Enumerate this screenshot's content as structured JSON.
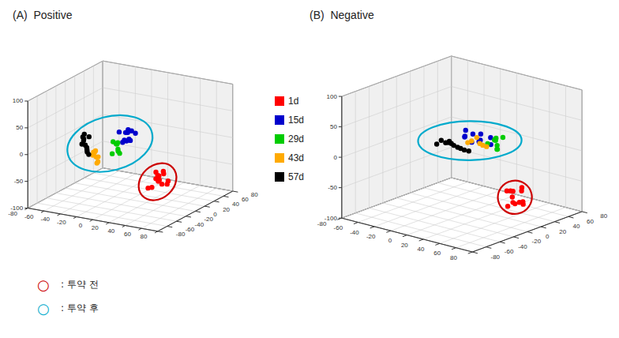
{
  "chart_data": [
    {
      "type": "scatter3d",
      "title": "(A)  Positive",
      "series": [
        {
          "name": "1d",
          "color": "#ff0000",
          "x": [
            25,
            20,
            30,
            35,
            22,
            28,
            32,
            25,
            38,
            20,
            15,
            27,
            18
          ],
          "y": [
            15,
            20,
            10,
            18,
            8,
            22,
            12,
            28,
            15,
            25,
            12,
            8,
            30
          ],
          "z": [
            -55,
            -65,
            -60,
            -70,
            -75,
            -50,
            -68,
            -58,
            -62,
            -72,
            -80,
            -45,
            -65
          ]
        },
        {
          "name": "15d",
          "color": "#0000cc",
          "x": [
            10,
            15,
            5,
            0,
            12,
            8,
            2,
            10,
            -5,
            13,
            7
          ],
          "y": [
            -20,
            -15,
            -25,
            -10,
            -18,
            -22,
            -8,
            -30,
            -15,
            -28,
            -12
          ],
          "z": [
            25,
            35,
            20,
            30,
            40,
            22,
            35,
            28,
            32,
            42,
            18
          ]
        },
        {
          "name": "29d",
          "color": "#00cc00",
          "x": [
            5,
            0,
            10,
            3,
            -2,
            7,
            2,
            -5
          ],
          "y": [
            -35,
            -30,
            -40,
            -32,
            -25,
            -38,
            -42,
            -28
          ],
          "z": [
            12,
            18,
            8,
            22,
            15,
            10,
            6,
            20
          ]
        },
        {
          "name": "43d",
          "color": "#ffaa00",
          "x": [
            -20,
            -25,
            -15,
            -22,
            -18,
            -28,
            -13,
            -30
          ],
          "y": [
            -38,
            -33,
            -43,
            -36,
            -40,
            -30,
            -46,
            -28
          ],
          "z": [
            -8,
            -3,
            -13,
            2,
            -18,
            -5,
            -2,
            -12
          ]
        },
        {
          "name": "57d",
          "color": "#000000",
          "x": [
            -45,
            -50,
            -40,
            -48,
            -35,
            -52,
            -42,
            -55,
            -38,
            -45,
            -48
          ],
          "y": [
            -18,
            -13,
            -23,
            -16,
            -28,
            -8,
            -20,
            -6,
            -26,
            -10,
            -20
          ],
          "z": [
            -2,
            3,
            -7,
            8,
            -12,
            12,
            -5,
            5,
            -9,
            10,
            0
          ]
        }
      ],
      "xlim": [
        -80,
        80
      ],
      "ylim": [
        -80,
        80
      ],
      "zlim": [
        -100,
        100
      ],
      "xticks": [
        -80,
        -60,
        -40,
        -20,
        0,
        20,
        40,
        60,
        80
      ],
      "yticks": [
        -80,
        -60,
        -40,
        -20,
        0,
        20,
        40,
        60,
        80
      ],
      "zticks": [
        -100,
        -50,
        0,
        50,
        100
      ],
      "grid": true,
      "legend": "right",
      "annotations": [
        {
          "symbol": "○",
          "text": ": 투약 전",
          "color": "#cc0000",
          "series": [
            "1d"
          ]
        },
        {
          "symbol": "○",
          "text": ": 투약 후",
          "color": "#00aacc",
          "series": [
            "15d",
            "29d",
            "43d",
            "57d"
          ]
        }
      ]
    },
    {
      "type": "scatter3d",
      "title": "(B)  Negative",
      "series": [
        {
          "name": "1d",
          "color": "#ff0000",
          "x": [
            55,
            50,
            60,
            65,
            52,
            58,
            62,
            55,
            68,
            50,
            45,
            57
          ],
          "y": [
            8,
            15,
            3,
            12,
            5,
            18,
            10,
            22,
            8,
            18,
            12,
            3
          ],
          "z": [
            -55,
            -50,
            -60,
            -65,
            -70,
            -48,
            -62,
            -45,
            -58,
            -72,
            -50,
            -42
          ]
        },
        {
          "name": "15d",
          "color": "#0000cc",
          "x": [
            5,
            10,
            0,
            -5,
            8,
            3,
            -3,
            10,
            -8,
            12,
            2,
            -5
          ],
          "y": [
            20,
            15,
            25,
            10,
            18,
            22,
            8,
            30,
            15,
            28,
            12,
            22
          ],
          "z": [
            15,
            20,
            10,
            22,
            28,
            12,
            25,
            18,
            30,
            8,
            15,
            22
          ]
        },
        {
          "name": "29d",
          "color": "#00cc00",
          "x": [
            18,
            12,
            22,
            15,
            8,
            20,
            15,
            8
          ],
          "y": [
            30,
            35,
            25,
            32,
            38,
            28,
            42,
            28
          ],
          "z": [
            8,
            12,
            5,
            18,
            10,
            3,
            15,
            8
          ]
        },
        {
          "name": "43d",
          "color": "#ffaa00",
          "x": [
            -10,
            -15,
            -5,
            -12,
            -8,
            -18
          ],
          "y": [
            38,
            32,
            42,
            36,
            40,
            30
          ],
          "z": [
            -2,
            3,
            -7,
            8,
            -5,
            0
          ]
        },
        {
          "name": "57d",
          "color": "#000000",
          "x": [
            -25,
            -30,
            -20,
            -28,
            -15,
            -32,
            -22,
            -35,
            -18,
            -25,
            -28
          ],
          "y": [
            18,
            12,
            22,
            15,
            28,
            8,
            20,
            5,
            25,
            10,
            18
          ],
          "z": [
            -2,
            3,
            -7,
            5,
            -12,
            8,
            -5,
            2,
            -10,
            6,
            0
          ]
        }
      ],
      "xlim": [
        -80,
        80
      ],
      "ylim": [
        -80,
        80
      ],
      "zlim": [
        -100,
        100
      ],
      "xticks": [
        -80,
        -60,
        -40,
        -20,
        0,
        20,
        40,
        60,
        80
      ],
      "yticks": [
        -80,
        -60,
        -40,
        -20,
        0,
        20,
        40,
        60,
        80
      ],
      "zticks": [
        -100,
        -50,
        0,
        50,
        100
      ],
      "grid": true
    }
  ]
}
